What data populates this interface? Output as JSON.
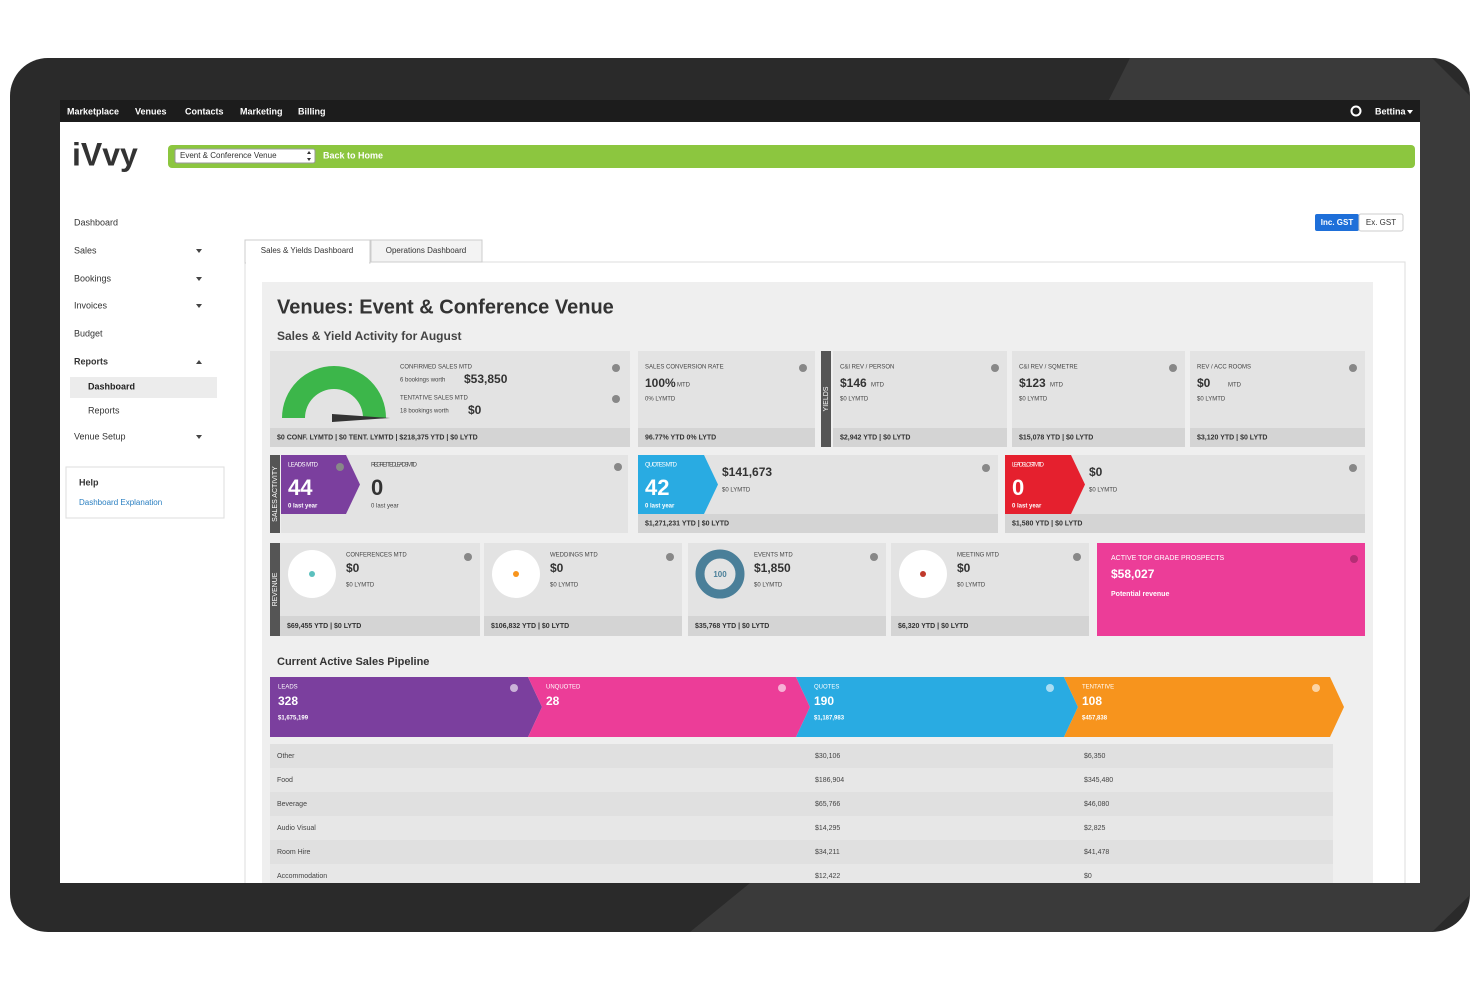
{
  "nav": {
    "items": [
      "Marketplace",
      "Venues",
      "Contacts",
      "Marketing",
      "Billing"
    ],
    "user": "Bettina"
  },
  "header": {
    "logo": "iVvy",
    "venue_select": "Event & Conference Venue",
    "back_link": "Back to Home"
  },
  "sidebar": {
    "items": [
      "Dashboard",
      "Sales",
      "Bookings",
      "Invoices",
      "Budget",
      "Reports"
    ],
    "sub_items": [
      "Dashboard",
      "Reports"
    ],
    "last_item": "Venue Setup",
    "help": {
      "title": "Help",
      "link": "Dashboard Explanation"
    }
  },
  "gst_toggle": [
    "Inc. GST",
    "Ex. GST"
  ],
  "tabs": [
    "Sales & Yields Dashboard",
    "Operations Dashboard"
  ],
  "panel": {
    "title": "Venues: Event & Conference Venue",
    "subtitle": "Sales & Yield Activity for August"
  },
  "sales_card": {
    "confirmed_label": "CONFIRMED SALES MTD",
    "confirmed_count": "6 bookings worth",
    "confirmed_value": "$53,850",
    "tentative_label": "TENTATIVE SALES MTD",
    "tentative_count": "18 bookings worth",
    "tentative_value": "$0",
    "footer": "$0 CONF. LYMTD | $0 TENT. LYMTD | $218,375 YTD | $0 LYTD"
  },
  "yield_label": "YIELDS",
  "yield_cards": [
    {
      "label": "SALES CONVERSION RATE",
      "value": "100%",
      "period": "MTD",
      "lymtd": "0% LYMTD",
      "footer": "96.77% YTD 0% LYTD"
    },
    {
      "label": "C&I REV / PERSON",
      "value": "$146",
      "period": "MTD",
      "lymtd": "$0 LYMTD",
      "footer": "$2,942 YTD | $0 LYTD"
    },
    {
      "label": "C&I REV / SQMETRE",
      "value": "$123",
      "period": "MTD",
      "lymtd": "$0 LYMTD",
      "footer": "$15,078 YTD | $0 LYTD"
    },
    {
      "label": "REV / ACC ROOMS",
      "value": "$0",
      "period": "MTD",
      "lymtd": "$0 LYMTD",
      "footer": "$3,120 YTD | $0 LYTD"
    }
  ],
  "activity_label": "SALES ACTIVITY",
  "leads": {
    "label": "LEADS MTD",
    "value": "44",
    "sub": "0 last year"
  },
  "regretted": {
    "label": "REGRETTED LEADS MTD",
    "value": "0",
    "sub": "0 last year"
  },
  "quotes": {
    "label": "QUOTES MTD",
    "value": "42",
    "sub": "0 last year",
    "amount": "$141,673",
    "lymtd": "$0 LYMTD",
    "footer": "$1,271,231 YTD | $0 LYTD"
  },
  "leads_lost": {
    "label": "LEADS LOST MTD",
    "value": "0",
    "sub": "0 last year",
    "amount": "$0",
    "lymtd": "$0 LYMTD",
    "footer": "$1,580 YTD | $0 LYTD"
  },
  "revenue_label": "REVENUE",
  "revenue_cards": [
    {
      "label": "CONFERENCES MTD",
      "value": "$0",
      "lymtd": "$0 LYMTD",
      "footer": "$69,455 YTD | $0 LYTD"
    },
    {
      "label": "WEDDINGS MTD",
      "value": "$0",
      "lymtd": "$0 LYMTD",
      "footer": "$106,832 YTD | $0 LYTD"
    },
    {
      "label": "EVENTS MTD",
      "value": "$1,850",
      "lymtd": "$0 LYMTD",
      "footer": "$35,768 YTD | $0 LYTD",
      "donut": "100"
    },
    {
      "label": "MEETING MTD",
      "value": "$0",
      "lymtd": "$0 LYMTD",
      "footer": "$6,320 YTD | $0 LYTD"
    }
  ],
  "prospects": {
    "label": "ACTIVE TOP GRADE PROSPECTS",
    "value": "$58,027",
    "sub": "Potential revenue"
  },
  "pipeline": {
    "title": "Current Active Sales Pipeline",
    "stages": [
      {
        "name": "LEADS",
        "count": "328",
        "amount": "$1,675,199"
      },
      {
        "name": "UNQUOTED",
        "count": "28"
      },
      {
        "name": "QUOTES",
        "count": "190",
        "amount": "$1,187,983"
      },
      {
        "name": "TENTATIVE",
        "count": "108",
        "amount": "$457,838"
      }
    ],
    "rows": [
      {
        "label": "Other",
        "quotes": "$30,106",
        "tentative": "$6,350"
      },
      {
        "label": "Food",
        "quotes": "$186,904",
        "tentative": "$345,480"
      },
      {
        "label": "Beverage",
        "quotes": "$65,766",
        "tentative": "$46,080"
      },
      {
        "label": "Audio Visual",
        "quotes": "$14,295",
        "tentative": "$2,825"
      },
      {
        "label": "Room Hire",
        "quotes": "$34,211",
        "tentative": "$41,478"
      },
      {
        "label": "Accommodation",
        "quotes": "$12,422",
        "tentative": "$0"
      }
    ]
  }
}
